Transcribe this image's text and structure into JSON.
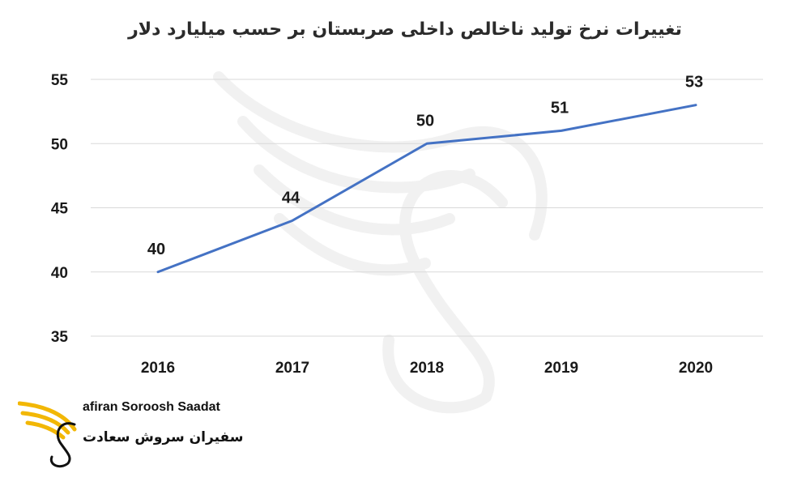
{
  "chart_data": {
    "type": "line",
    "title": "تغییرات نرخ تولید ناخالص داخلی صربستان بر حسب میلیارد دلار",
    "categories": [
      "2016",
      "2017",
      "2018",
      "2019",
      "2020"
    ],
    "values": [
      40,
      44,
      50,
      51,
      53
    ],
    "data_labels": [
      "40",
      "44",
      "50",
      "51",
      "53"
    ],
    "y_ticks": [
      "35",
      "40",
      "45",
      "50",
      "55"
    ],
    "ylim": [
      35,
      55
    ],
    "grid": true,
    "legend": "none",
    "line_color": "#4472c4",
    "grid_color": "#d9d9d9"
  },
  "logo": {
    "name_en": "afiran Soroosh Saadat",
    "name_fa": "سفیران سروش سعادت",
    "accent_color": "#f2b705"
  }
}
